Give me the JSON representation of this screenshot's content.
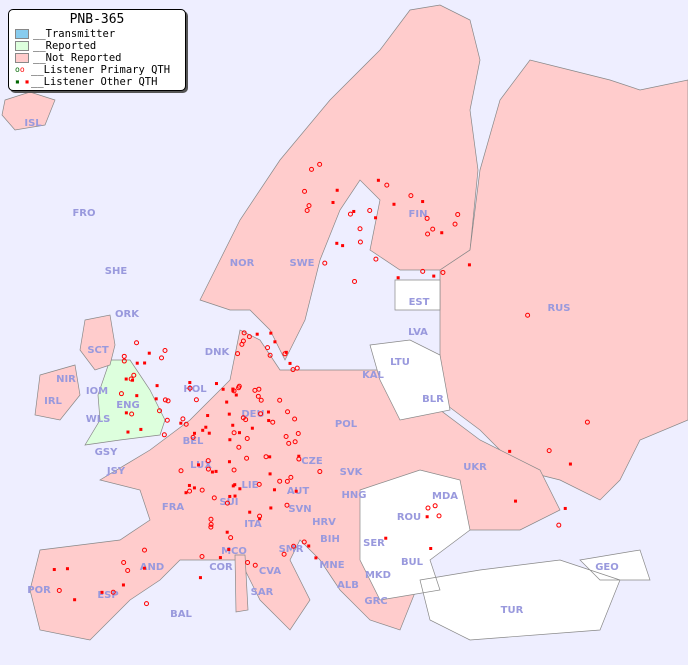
{
  "title": "PNB-365",
  "legend": [
    {
      "label": "__Transmitter",
      "color": "#88ccee"
    },
    {
      "label": "__Reported",
      "color": "#ddffdd"
    },
    {
      "label": "__Not Reported",
      "color": "#ffcccc"
    },
    {
      "label": "__Listener Primary QTH",
      "marker": "open-circle",
      "colors": [
        "#006600",
        "#ff0000"
      ]
    },
    {
      "label": "__Listener Other QTH",
      "marker": "square",
      "colors": [
        "#006600",
        "#ff0000"
      ]
    }
  ],
  "colors": {
    "sea": "#eeeeff",
    "not_reported": "#ffcccc",
    "reported": "#ddffdd",
    "no_data": "#ffffff",
    "listener": "#ff0000",
    "label": "#9999dd"
  },
  "countries": [
    "ISL",
    "FRO",
    "SHE",
    "ORK",
    "NOR",
    "SWE",
    "FIN",
    "EST",
    "LVA",
    "LTU",
    "KAL",
    "RUS",
    "DNK",
    "HOL",
    "DEU",
    "POL",
    "BLR",
    "IRL",
    "IOM",
    "WLS",
    "ENG",
    "SCT",
    "NIR",
    "GSY",
    "JSY",
    "BEL",
    "LUX",
    "CZE",
    "SVK",
    "UKR",
    "FRA",
    "SUI",
    "LIE",
    "AUT",
    "HNG",
    "MDA",
    "ROU",
    "SVN",
    "HRV",
    "ITA",
    "BIH",
    "SER",
    "SMR",
    "MCO",
    "COR",
    "AND",
    "BUL",
    "MNE",
    "MKD",
    "ALB",
    "GEO",
    "CVA",
    "SAR",
    "POR",
    "ESP",
    "BAL",
    "GRC",
    "TUR"
  ]
}
